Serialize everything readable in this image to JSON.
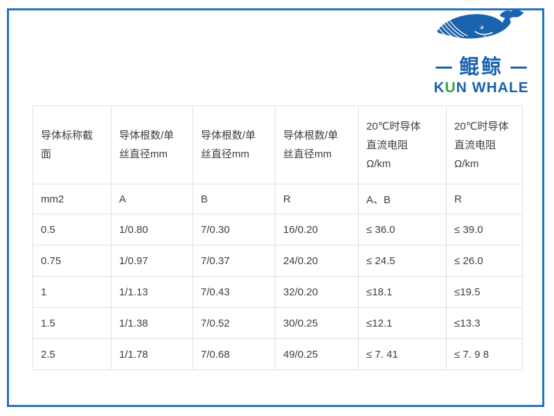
{
  "logo": {
    "chinese_name": "鲲鲸",
    "english_name_k": "K",
    "english_name_u": "U",
    "english_name_rest": "N WHALE",
    "whale_icon": "blue-whale-icon",
    "blue": "#1b63ae",
    "green": "#3aa23a"
  },
  "frame": {
    "border_color": "#2273ba"
  },
  "table": {
    "border_color": "#e0e0e0",
    "text_color": "#3e3e3e",
    "headers": [
      "导体标称截\n面",
      "导体根数/单\n丝直径mm",
      "导体根数/单\n丝直径mm",
      "导体根数/单\n丝直径mm",
      "20℃时导体\n直流电阻\nΩ/km",
      "20℃时导体\n直流电阻\nΩ/km"
    ],
    "unit_row": [
      "mm2",
      "A",
      "B",
      "R",
      "A、B",
      "R"
    ],
    "rows": [
      [
        "0.5",
        "1/0.80",
        "7/0.30",
        "16/0.20",
        "≤ 36.0",
        "≤ 39.0"
      ],
      [
        "0.75",
        "1/0.97",
        "7/0.37",
        "24/0.20",
        "≤ 24.5",
        "≤ 26.0"
      ],
      [
        "1",
        "1/1.13",
        "7/0.43",
        "32/0.20",
        "≤18.1",
        "≤19.5"
      ],
      [
        "1.5",
        "1/1.38",
        "7/0.52",
        "30/0.25",
        "≤12.1",
        "≤13.3"
      ],
      [
        "2.5",
        "1/1.78",
        "7/0.68",
        "49/0.25",
        "≤ 7. 41",
        "≤ 7. 9 8"
      ]
    ]
  }
}
